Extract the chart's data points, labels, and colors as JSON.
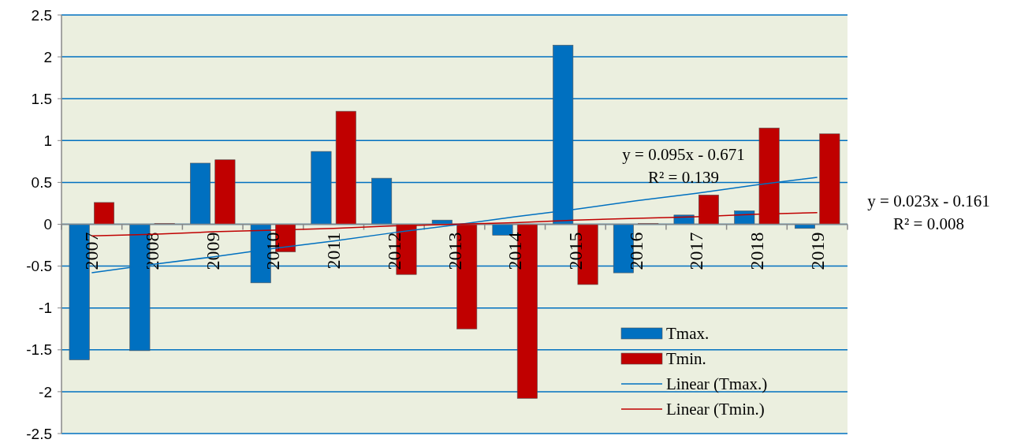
{
  "chart_data": {
    "type": "bar",
    "categories": [
      "2007",
      "2008",
      "2009",
      "2010",
      "2011",
      "2012",
      "2013",
      "2014",
      "2015",
      "2016",
      "2017",
      "2018",
      "2019"
    ],
    "series": [
      {
        "name": "Tmax.",
        "color": "#0070c0",
        "values": [
          -1.62,
          -1.51,
          0.73,
          -0.7,
          0.87,
          0.55,
          0.05,
          -0.13,
          2.14,
          -0.58,
          0.11,
          0.16,
          -0.05
        ]
      },
      {
        "name": "Tmin.",
        "color": "#c00000",
        "values": [
          0.26,
          0.01,
          0.77,
          -0.33,
          1.35,
          -0.6,
          -1.25,
          -2.08,
          -0.72,
          0.01,
          0.35,
          1.15,
          1.08
        ]
      },
      {
        "name": "Linear (Tmax.)",
        "type": "line",
        "color": "#0070c0",
        "values": [
          -0.58,
          -0.48,
          -0.39,
          -0.29,
          -0.2,
          -0.1,
          -0.01,
          0.09,
          0.18,
          0.28,
          0.37,
          0.47,
          0.56
        ]
      },
      {
        "name": "Linear (Tmin.)",
        "type": "line",
        "color": "#c00000",
        "values": [
          -0.14,
          -0.12,
          -0.09,
          -0.07,
          -0.05,
          -0.02,
          0,
          0.02,
          0.05,
          0.07,
          0.09,
          0.12,
          0.14
        ]
      }
    ],
    "annotations": [
      "y = 0.095x - 0.671\nR² = 0.139",
      "y = 0.023x - 0.161\nR² = 0.008"
    ],
    "ylim": [
      -2.5,
      2.5
    ],
    "yticks": [
      -2.5,
      -2,
      -1.5,
      -1,
      -0.5,
      0,
      0.5,
      1,
      1.5,
      2,
      2.5
    ],
    "grid": "y",
    "legend": "bottom right"
  }
}
